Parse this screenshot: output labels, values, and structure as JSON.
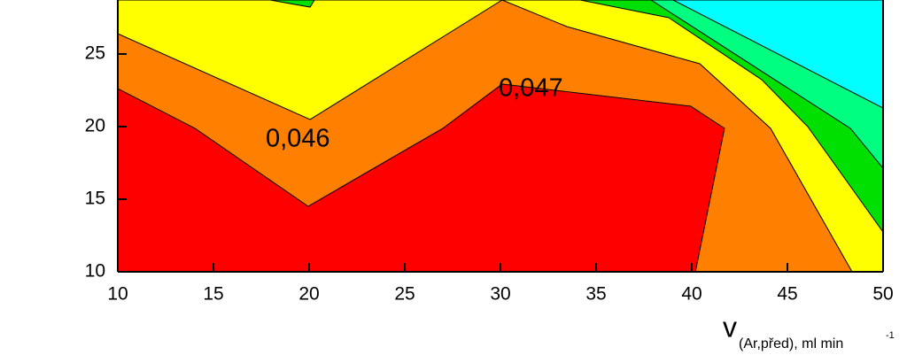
{
  "chart_data": {
    "type": "contour",
    "xlim": [
      10,
      50
    ],
    "ylim": [
      10,
      28.72
    ],
    "xticks": [
      10,
      15,
      20,
      25,
      30,
      35,
      40,
      45,
      50
    ],
    "yticks": [
      10,
      15,
      20,
      25
    ],
    "x_label": {
      "main": "v",
      "subscript": "(Ar,před), ml min",
      "superscript": "-1"
    },
    "regions": [
      {
        "color": "#00ffff",
        "x": [
          10,
          10,
          50,
          50
        ],
        "y": [
          10,
          28.72,
          28.72,
          10
        ]
      },
      {
        "color": "#00ff80",
        "x": [
          10,
          10,
          39.03,
          50,
          50
        ],
        "y": [
          10,
          28.72,
          28.72,
          21.28,
          10
        ]
      },
      {
        "color": "#00e000",
        "x": [
          10,
          10,
          37.87,
          48.29,
          50,
          50
        ],
        "y": [
          10,
          28.72,
          28.72,
          19.88,
          17.13,
          10
        ]
      },
      {
        "color": "#ffff00",
        "x": [
          10,
          10,
          34.17,
          38.8,
          43.66,
          46.06,
          50,
          50
        ],
        "y": [
          10,
          28.72,
          28.72,
          27.5,
          23.23,
          20,
          12.74,
          10
        ]
      },
      {
        "color": "#00e000",
        "x": [
          17.96,
          20.05,
          20.28
        ],
        "y": [
          28.72,
          28.23,
          28.72
        ]
      },
      {
        "color": "#ff8000",
        "x": [
          10,
          10,
          20.05,
          30.09,
          33.47,
          40.42,
          44.12,
          48.38
        ],
        "y": [
          10,
          26.4,
          20.49,
          28.72,
          26.89,
          24.33,
          19.88,
          10
        ]
      },
      {
        "color": "#ff0000",
        "x": [
          10,
          10,
          14.03,
          19.95,
          26.99,
          30.09,
          39.95,
          41.71,
          40.19
        ],
        "y": [
          10,
          22.62,
          19.88,
          14.51,
          19.88,
          22.93,
          21.4,
          19.88,
          10
        ]
      }
    ],
    "annotations": [
      {
        "text": "0,046",
        "x": 17.73,
        "y": 19.09
      },
      {
        "text": "0,047",
        "x": 29.91,
        "y": 22.56
      }
    ]
  }
}
